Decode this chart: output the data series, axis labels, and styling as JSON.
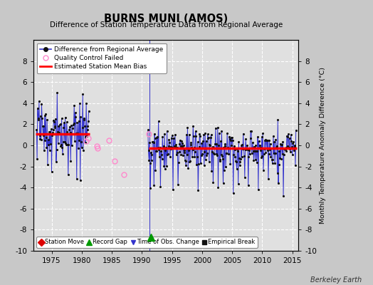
{
  "title": "BURNS MUNI (AMOS)",
  "subtitle": "Difference of Station Temperature Data from Regional Average",
  "ylabel": "Monthly Temperature Anomaly Difference (°C)",
  "xlabel_years": [
    1975,
    1980,
    1985,
    1990,
    1995,
    2000,
    2005,
    2010,
    2015
  ],
  "ylim": [
    -10,
    10
  ],
  "yticks": [
    -10,
    -8,
    -6,
    -4,
    -2,
    0,
    2,
    4,
    6,
    8
  ],
  "xlim": [
    1972.0,
    2016.0
  ],
  "background_color": "#c8c8c8",
  "plot_bg_color": "#e0e0e0",
  "grid_color": "#ffffff",
  "line_color": "#3333cc",
  "dot_color": "#111111",
  "bias_color": "#ff0000",
  "qc_color": "#ff88cc",
  "segment1_bias": 1.1,
  "segment2_bias": -0.25,
  "seg1_start": 1972.3,
  "seg1_end": 1981.3,
  "seg2_start": 1991.1,
  "seg2_end": 2015.7,
  "gap_marker_x": 1991.5,
  "gap_marker_y": -8.7,
  "gap_marker_color": "#009900",
  "vline_x": 1991.3,
  "berkeley_earth_text": "Berkeley Earth",
  "qc_points": [
    [
      1980.75,
      0.4
    ],
    [
      1981.08,
      0.7
    ],
    [
      1982.5,
      -0.1
    ],
    [
      1982.6,
      -0.3
    ],
    [
      1984.5,
      0.5
    ],
    [
      1985.5,
      -1.5
    ],
    [
      1987.0,
      -2.8
    ],
    [
      1991.1,
      1.1
    ]
  ],
  "legend_items": [
    {
      "label": "Difference from Regional Average"
    },
    {
      "label": "Quality Control Failed"
    },
    {
      "label": "Estimated Station Mean Bias"
    }
  ],
  "bottom_legend": [
    {
      "label": "Station Move",
      "color": "#dd0000",
      "marker": "D"
    },
    {
      "label": "Record Gap",
      "color": "#009900",
      "marker": "^"
    },
    {
      "label": "Time of Obs. Change",
      "color": "#3333cc",
      "marker": "v"
    },
    {
      "label": "Empirical Break",
      "color": "#111111",
      "marker": "s"
    }
  ]
}
